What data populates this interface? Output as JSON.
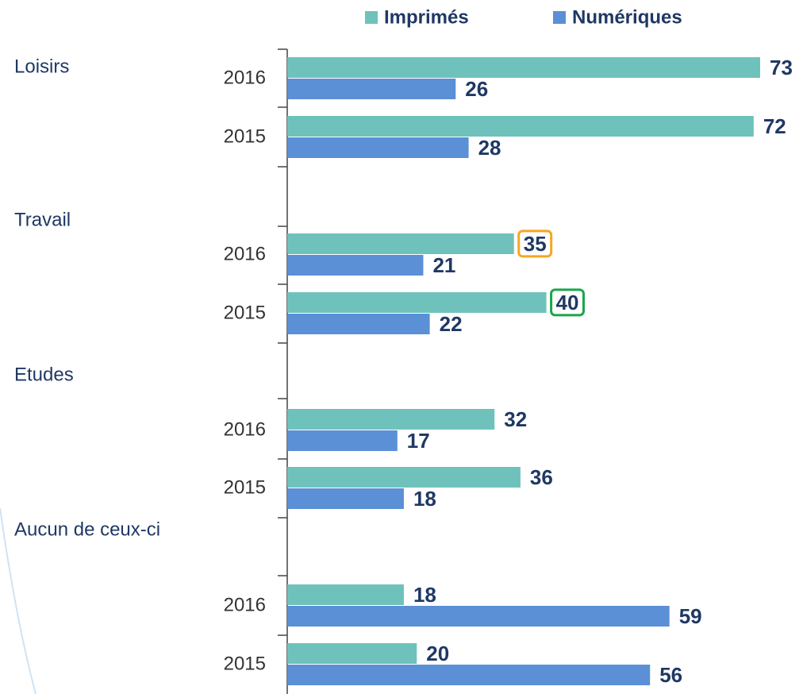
{
  "chart_data": {
    "type": "bar",
    "orientation": "horizontal",
    "group_labels": [
      "Loisirs",
      "Travail",
      "Etudes",
      "Aucun de ceux-ci"
    ],
    "categories": [
      "2016",
      "2015",
      "2016",
      "2015",
      "2016",
      "2015",
      "2016",
      "2015"
    ],
    "series": [
      {
        "name": "Imprimés",
        "color": "#6fc2bc",
        "values": [
          73,
          72,
          35,
          40,
          32,
          36,
          18,
          20
        ]
      },
      {
        "name": "Numériques",
        "color": "#5b8fd6",
        "values": [
          26,
          28,
          21,
          22,
          17,
          18,
          59,
          56
        ]
      }
    ],
    "xlim": [
      0,
      73
    ],
    "highlight_boxes": [
      {
        "series": 0,
        "index": 2,
        "color": "#f5a623"
      },
      {
        "series": 0,
        "index": 3,
        "color": "#1aa64a"
      }
    ],
    "legend": "top"
  }
}
